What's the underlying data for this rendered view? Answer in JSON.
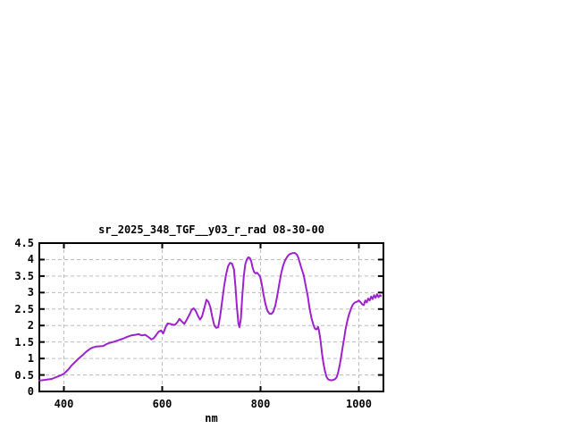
{
  "chart_data": {
    "type": "line",
    "title": "sr_2025_348_TGF__y03_r_rad 08-30-00",
    "xlabel": "nm",
    "ylabel": "",
    "xlim": [
      350,
      1050
    ],
    "ylim": [
      0,
      4.5
    ],
    "xtick_labels": [
      "400",
      "600",
      "800",
      "1000"
    ],
    "xtick_values": [
      400,
      600,
      800,
      1000
    ],
    "ytick_labels": [
      "0",
      "0.5",
      "1",
      "1.5",
      "2",
      "2.5",
      "3",
      "3.5",
      "4",
      "4.5"
    ],
    "ytick_values": [
      0,
      0.5,
      1,
      1.5,
      2,
      2.5,
      3,
      3.5,
      4,
      4.5
    ],
    "grid": true,
    "legend": "none",
    "colors": {
      "line": "#A020D0",
      "grid": "#bdbdbd",
      "border": "#000000",
      "text": "#000000",
      "background": "#ffffff"
    },
    "series": [
      {
        "name": "sr_2025_348_TGF__y03_r_rad 08-30-00",
        "points": [
          [
            350,
            0.33
          ],
          [
            355,
            0.34
          ],
          [
            365,
            0.36
          ],
          [
            375,
            0.38
          ],
          [
            385,
            0.44
          ],
          [
            395,
            0.5
          ],
          [
            400,
            0.54
          ],
          [
            408,
            0.65
          ],
          [
            415,
            0.78
          ],
          [
            422,
            0.88
          ],
          [
            430,
            1.0
          ],
          [
            438,
            1.1
          ],
          [
            445,
            1.2
          ],
          [
            452,
            1.28
          ],
          [
            458,
            1.33
          ],
          [
            465,
            1.36
          ],
          [
            472,
            1.37
          ],
          [
            480,
            1.38
          ],
          [
            486,
            1.43
          ],
          [
            492,
            1.47
          ],
          [
            500,
            1.5
          ],
          [
            510,
            1.55
          ],
          [
            520,
            1.6
          ],
          [
            528,
            1.65
          ],
          [
            537,
            1.7
          ],
          [
            545,
            1.72
          ],
          [
            552,
            1.74
          ],
          [
            558,
            1.7
          ],
          [
            565,
            1.72
          ],
          [
            572,
            1.65
          ],
          [
            578,
            1.58
          ],
          [
            583,
            1.62
          ],
          [
            588,
            1.72
          ],
          [
            593,
            1.82
          ],
          [
            598,
            1.85
          ],
          [
            602,
            1.76
          ],
          [
            607,
            1.95
          ],
          [
            611,
            2.06
          ],
          [
            616,
            2.05
          ],
          [
            621,
            2.03
          ],
          [
            626,
            2.02
          ],
          [
            631,
            2.1
          ],
          [
            635,
            2.2
          ],
          [
            640,
            2.12
          ],
          [
            645,
            2.05
          ],
          [
            650,
            2.18
          ],
          [
            655,
            2.32
          ],
          [
            660,
            2.48
          ],
          [
            664,
            2.52
          ],
          [
            668,
            2.45
          ],
          [
            673,
            2.28
          ],
          [
            677,
            2.18
          ],
          [
            681,
            2.28
          ],
          [
            686,
            2.55
          ],
          [
            690,
            2.78
          ],
          [
            694,
            2.72
          ],
          [
            698,
            2.55
          ],
          [
            702,
            2.25
          ],
          [
            706,
            2.0
          ],
          [
            710,
            1.93
          ],
          [
            714,
            1.95
          ],
          [
            718,
            2.3
          ],
          [
            722,
            2.75
          ],
          [
            726,
            3.2
          ],
          [
            730,
            3.55
          ],
          [
            734,
            3.8
          ],
          [
            738,
            3.9
          ],
          [
            742,
            3.88
          ],
          [
            746,
            3.7
          ],
          [
            749,
            3.2
          ],
          [
            752,
            2.55
          ],
          [
            755,
            2.05
          ],
          [
            757,
            1.95
          ],
          [
            760,
            2.2
          ],
          [
            763,
            2.9
          ],
          [
            766,
            3.5
          ],
          [
            769,
            3.85
          ],
          [
            772,
            4.0
          ],
          [
            775,
            4.07
          ],
          [
            778,
            4.05
          ],
          [
            781,
            3.95
          ],
          [
            784,
            3.75
          ],
          [
            787,
            3.62
          ],
          [
            790,
            3.58
          ],
          [
            793,
            3.6
          ],
          [
            796,
            3.55
          ],
          [
            799,
            3.48
          ],
          [
            802,
            3.3
          ],
          [
            806,
            2.95
          ],
          [
            810,
            2.65
          ],
          [
            814,
            2.45
          ],
          [
            818,
            2.36
          ],
          [
            822,
            2.35
          ],
          [
            826,
            2.42
          ],
          [
            830,
            2.6
          ],
          [
            834,
            2.9
          ],
          [
            838,
            3.25
          ],
          [
            842,
            3.58
          ],
          [
            846,
            3.82
          ],
          [
            850,
            3.98
          ],
          [
            854,
            4.08
          ],
          [
            858,
            4.15
          ],
          [
            862,
            4.18
          ],
          [
            866,
            4.2
          ],
          [
            870,
            4.2
          ],
          [
            874,
            4.15
          ],
          [
            877,
            4.05
          ],
          [
            880,
            3.9
          ],
          [
            884,
            3.7
          ],
          [
            888,
            3.52
          ],
          [
            892,
            3.2
          ],
          [
            896,
            2.9
          ],
          [
            900,
            2.5
          ],
          [
            904,
            2.2
          ],
          [
            908,
            2.0
          ],
          [
            911,
            1.9
          ],
          [
            914,
            1.88
          ],
          [
            917,
            1.96
          ],
          [
            919,
            1.85
          ],
          [
            922,
            1.55
          ],
          [
            925,
            1.15
          ],
          [
            928,
            0.85
          ],
          [
            931,
            0.62
          ],
          [
            934,
            0.45
          ],
          [
            937,
            0.38
          ],
          [
            940,
            0.35
          ],
          [
            944,
            0.34
          ],
          [
            948,
            0.35
          ],
          [
            952,
            0.38
          ],
          [
            955,
            0.44
          ],
          [
            958,
            0.58
          ],
          [
            961,
            0.8
          ],
          [
            964,
            1.05
          ],
          [
            967,
            1.35
          ],
          [
            970,
            1.6
          ],
          [
            973,
            1.88
          ],
          [
            976,
            2.1
          ],
          [
            979,
            2.28
          ],
          [
            982,
            2.42
          ],
          [
            985,
            2.55
          ],
          [
            988,
            2.64
          ],
          [
            992,
            2.7
          ],
          [
            996,
            2.72
          ],
          [
            1000,
            2.76
          ],
          [
            1004,
            2.7
          ],
          [
            1007,
            2.64
          ],
          [
            1010,
            2.62
          ],
          [
            1013,
            2.76
          ],
          [
            1016,
            2.7
          ],
          [
            1019,
            2.82
          ],
          [
            1022,
            2.76
          ],
          [
            1025,
            2.88
          ],
          [
            1028,
            2.8
          ],
          [
            1031,
            2.92
          ],
          [
            1034,
            2.84
          ],
          [
            1037,
            2.95
          ],
          [
            1040,
            2.86
          ],
          [
            1043,
            2.92
          ],
          [
            1045,
            2.9
          ]
        ]
      }
    ]
  }
}
